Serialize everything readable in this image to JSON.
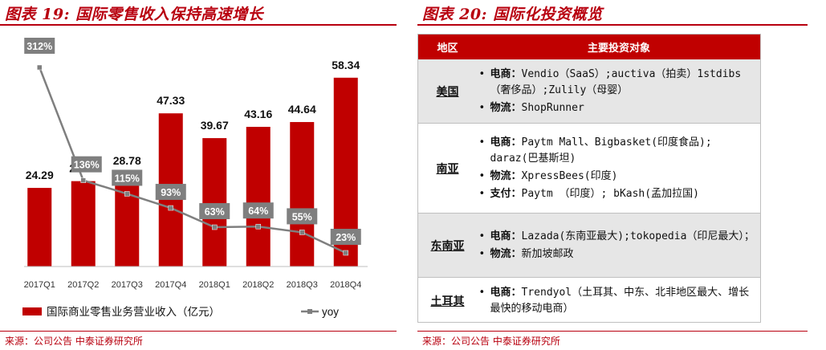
{
  "left_panel": {
    "title": "图表 19: 国际零售收入保持高速增长",
    "source": "来源：公司公告 中泰证券研究所"
  },
  "right_panel": {
    "title": "图表 20: 国际化投资概览",
    "source": "来源：公司公告 中泰证券研究所",
    "table": {
      "headers": [
        "地区",
        "主要投资对象"
      ],
      "rows": [
        {
          "region": "美国",
          "items": [
            {
              "label": "电商：",
              "text": "Vendio（SaaS）;auctiva（拍卖）1stdibs（奢侈品）;Zulily（母婴）"
            },
            {
              "label": "物流：",
              "text": "ShopRunner"
            }
          ]
        },
        {
          "region": "南亚",
          "items": [
            {
              "label": "电商：",
              "text": "Paytm Mall、Bigbasket(印度食品); daraz(巴基斯坦)"
            },
            {
              "label": "物流：",
              "text": "XpressBees(印度)"
            },
            {
              "label": "支付：",
              "text": "Paytm （印度）; bKash(孟加拉国)"
            }
          ]
        },
        {
          "region": "东南亚",
          "items": [
            {
              "label": "电商：",
              "text": "Lazada(东南亚最大);tokopedia（印尼最大）；"
            },
            {
              "label": "物流：",
              "text": "新加坡邮政"
            }
          ]
        },
        {
          "region": "土耳其",
          "items": [
            {
              "label": "电商：",
              "text": "Trendyol（土耳其、中东、北非地区最大、增长最快的移动电商）"
            }
          ]
        }
      ]
    }
  },
  "colors": {
    "accent": "#b8000f",
    "bar": "#c00000",
    "line": "#7f7f7f",
    "header_bg": "#c00000",
    "row_grey": "#e6e6e6"
  },
  "chart_data": {
    "type": "bar",
    "categories": [
      "2017Q1",
      "2017Q2",
      "2017Q3",
      "2017Q4",
      "2018Q1",
      "2018Q2",
      "2018Q3",
      "2018Q4"
    ],
    "series": [
      {
        "name": "国际商业零售业务营业收入（亿元）",
        "type": "bar",
        "values": [
          24.29,
          26.38,
          28.78,
          47.33,
          39.67,
          43.16,
          44.64,
          58.34
        ],
        "labels": [
          "24.29",
          "26.38",
          "28.78",
          "47.33",
          "39.67",
          "43.16",
          "44.64",
          "58.34"
        ]
      },
      {
        "name": "yoy",
        "type": "line",
        "values": [
          312,
          136,
          115,
          93,
          63,
          64,
          55,
          23
        ],
        "labels": [
          "312%",
          "136%",
          "115%",
          "93%",
          "63%",
          "64%",
          "55%",
          "23%"
        ]
      }
    ],
    "grid": false,
    "legend_position": "bottom"
  }
}
